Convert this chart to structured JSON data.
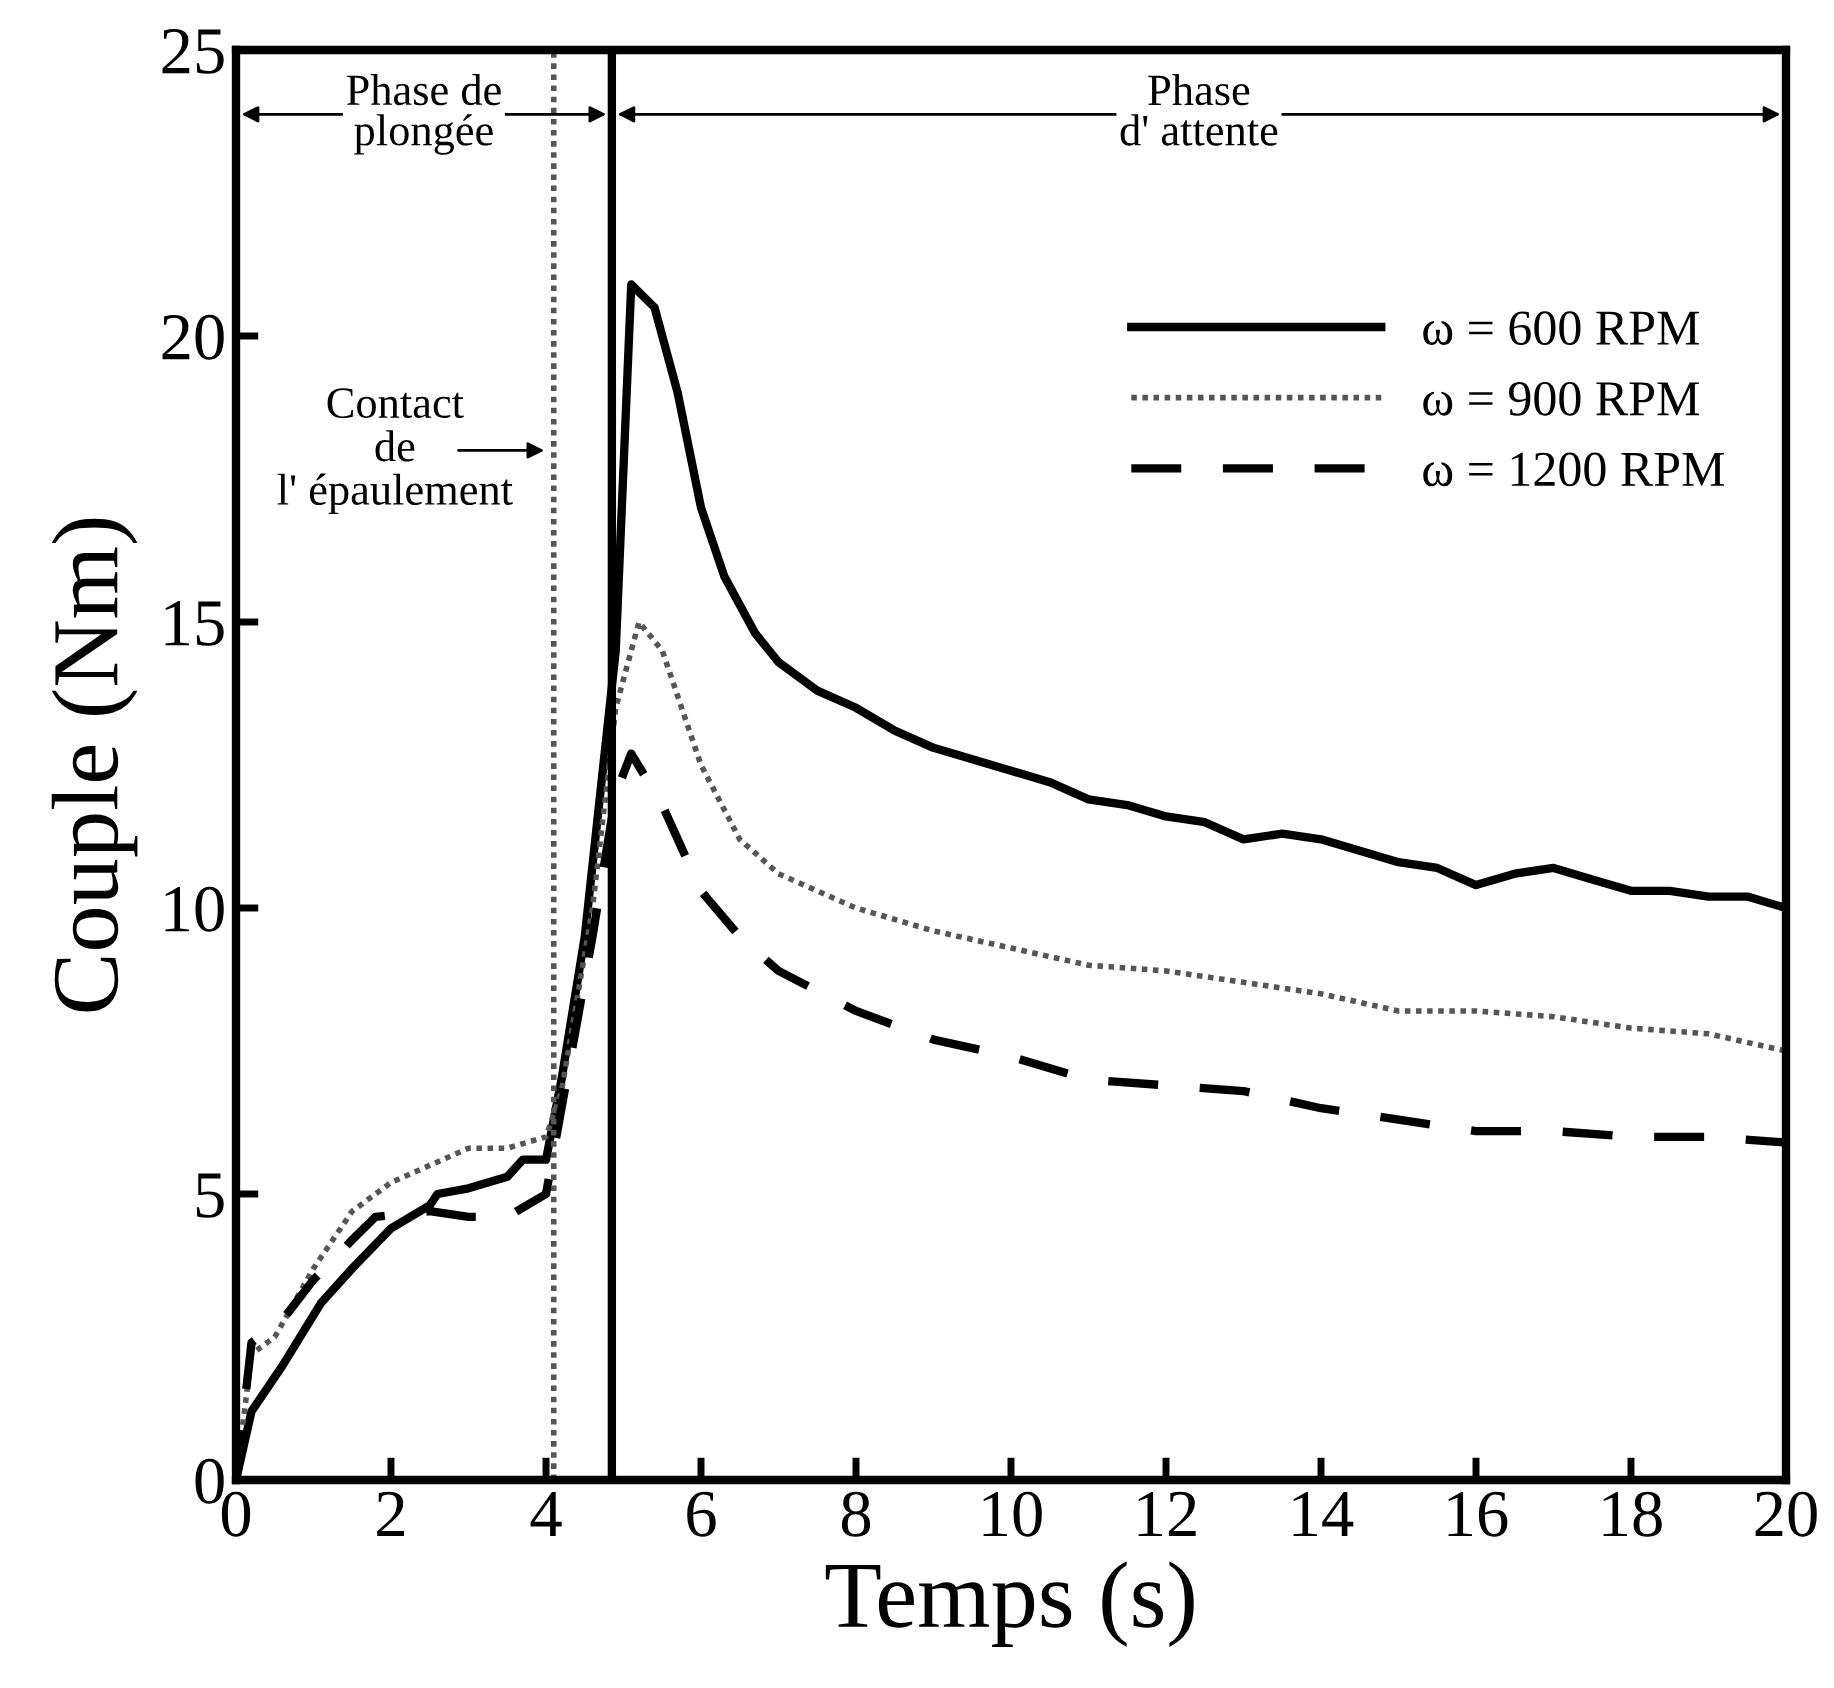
{
  "chart_data": {
    "type": "line",
    "xlabel": "Temps (s)",
    "ylabel": "Couple (Nm)",
    "xlim": [
      0,
      20
    ],
    "ylim": [
      0,
      25
    ],
    "xticks": [
      0,
      2,
      4,
      6,
      8,
      10,
      12,
      14,
      16,
      18,
      20
    ],
    "yticks": [
      0,
      5,
      10,
      15,
      20,
      25
    ],
    "grid": false,
    "legend": "top right",
    "marker": "none",
    "series": [
      {
        "name": "ω = 600 RPM",
        "color": "#000000",
        "line_style": "solid",
        "x": [
          0,
          0.2,
          0.6,
          1.1,
          1.5,
          2.0,
          2.5,
          2.6,
          3.0,
          3.5,
          3.7,
          4.0,
          4.2,
          4.5,
          4.9,
          5.1,
          5.4,
          5.7,
          6.0,
          6.3,
          6.7,
          7.0,
          7.5,
          8.0,
          8.5,
          9.0,
          9.5,
          10,
          10.5,
          11,
          11.5,
          12,
          12.5,
          13,
          13.5,
          14,
          14.5,
          15,
          15.5,
          16,
          16.5,
          17,
          17.5,
          18,
          18.5,
          19,
          19.5,
          20
        ],
        "values": [
          0,
          1.2,
          2.0,
          3.1,
          3.7,
          4.4,
          4.8,
          5.0,
          5.1,
          5.3,
          5.6,
          5.6,
          7.0,
          9.5,
          14.5,
          20.9,
          20.5,
          19.0,
          17.0,
          15.8,
          14.8,
          14.3,
          13.8,
          13.5,
          13.1,
          12.8,
          12.6,
          12.4,
          12.2,
          11.9,
          11.8,
          11.6,
          11.5,
          11.2,
          11.3,
          11.2,
          11.0,
          10.8,
          10.7,
          10.4,
          10.6,
          10.7,
          10.5,
          10.3,
          10.3,
          10.2,
          10.2,
          10.0
        ]
      },
      {
        "name": "ω = 900 RPM",
        "color": "#555555",
        "line_style": "dotted",
        "x": [
          0,
          0.2,
          0.5,
          1,
          1.5,
          2,
          2.5,
          3,
          3.5,
          4,
          4.2,
          4.6,
          4.9,
          5.2,
          5.5,
          6,
          6.5,
          7,
          7.5,
          8,
          9,
          10,
          11,
          12,
          13,
          14,
          15,
          16,
          17,
          18,
          19,
          20
        ],
        "values": [
          0,
          2.2,
          2.5,
          3.7,
          4.7,
          5.2,
          5.5,
          5.8,
          5.8,
          6.0,
          6.8,
          10,
          13.5,
          15.0,
          14.5,
          12.5,
          11.2,
          10.6,
          10.3,
          10.0,
          9.6,
          9.3,
          9.0,
          8.9,
          8.7,
          8.5,
          8.2,
          8.2,
          8.1,
          7.9,
          7.8,
          7.5
        ]
      },
      {
        "name": "ω = 1200 RPM",
        "color": "#000000",
        "line_style": "dashed",
        "x": [
          0,
          0.2,
          0.6,
          1,
          1.5,
          1.8,
          2.5,
          3,
          3.5,
          4,
          4.2,
          4.6,
          4.9,
          5.1,
          5.5,
          6,
          6.5,
          7,
          8,
          9,
          10,
          11,
          12,
          13,
          14,
          15,
          16,
          17,
          18,
          19,
          20
        ],
        "values": [
          0,
          2.4,
          2.8,
          3.5,
          4.2,
          4.6,
          4.7,
          4.6,
          4.6,
          5.0,
          6.5,
          9.5,
          12.0,
          12.7,
          11.8,
          10.3,
          9.5,
          8.9,
          8.2,
          7.7,
          7.4,
          7.0,
          6.9,
          6.8,
          6.5,
          6.3,
          6.1,
          6.1,
          6.0,
          6.0,
          5.9
        ]
      }
    ],
    "ref_lines": [
      {
        "axis": "x",
        "value": 4.1,
        "color": "#555555",
        "line_style": "dotted"
      },
      {
        "axis": "x",
        "value": 4.85,
        "color": "#000000",
        "line_style": "solid"
      }
    ],
    "annotations": [
      "Phase de\nplongée",
      "Phase\nd' attente",
      "Contact\nde\nl' épaulement"
    ]
  }
}
